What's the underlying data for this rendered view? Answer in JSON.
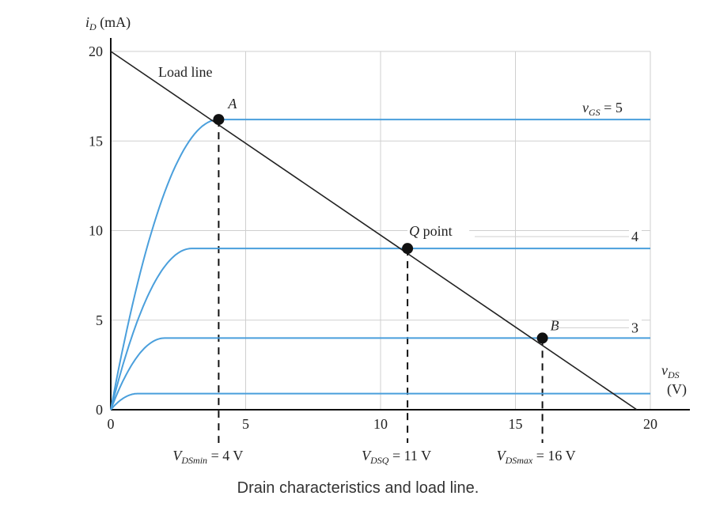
{
  "chart_data": {
    "type": "line",
    "xlabel": {
      "main": "v",
      "sub": "DS",
      "unit": "(V)"
    },
    "ylabel": {
      "main": "i",
      "sub": "D",
      "unit": "(mA)"
    },
    "xlim": [
      0,
      20
    ],
    "ylim": [
      0,
      20
    ],
    "xticks": [
      0,
      5,
      10,
      15,
      20
    ],
    "yticks": [
      0,
      5,
      10,
      15,
      20
    ],
    "grid": true,
    "colors": {
      "curves": "#4a9fdc",
      "load_line": "#222222",
      "grid": "#cfcfcf",
      "points": "#111111"
    },
    "series": [
      {
        "label_main": "",
        "label_sub": "",
        "label_value": "",
        "sat_current": 0.9,
        "knee_v": 1.0
      },
      {
        "label_main": "",
        "label_sub": "",
        "label_value": "3",
        "sat_current": 4.0,
        "knee_v": 2.0
      },
      {
        "label_main": "",
        "label_sub": "",
        "label_value": "4",
        "sat_current": 9.0,
        "knee_v": 3.0
      },
      {
        "label_main": "v",
        "label_sub": "GS",
        "label_value": " = 5",
        "sat_current": 16.2,
        "knee_v": 4.0
      }
    ],
    "load_line": {
      "label": "Load line",
      "x": [
        0,
        19.5
      ],
      "y": [
        20,
        0
      ]
    },
    "points": [
      {
        "name": "A",
        "x": 4,
        "y": 16.2
      },
      {
        "name": "Q point",
        "x": 11,
        "y": 9.0
      },
      {
        "name": "B",
        "x": 16,
        "y": 4.0
      }
    ],
    "vertical_markers": [
      {
        "x": 4,
        "from_y": 16.2,
        "main": "V",
        "sub": "DSmin",
        "value": " = 4 V"
      },
      {
        "x": 11,
        "from_y": 9.0,
        "main": "V",
        "sub": "DSQ",
        "value": " = 11 V"
      },
      {
        "x": 16,
        "from_y": 4.0,
        "main": "V",
        "sub": "DSmax",
        "value": " = 16 V"
      }
    ]
  },
  "caption": "Drain characteristics and load line."
}
